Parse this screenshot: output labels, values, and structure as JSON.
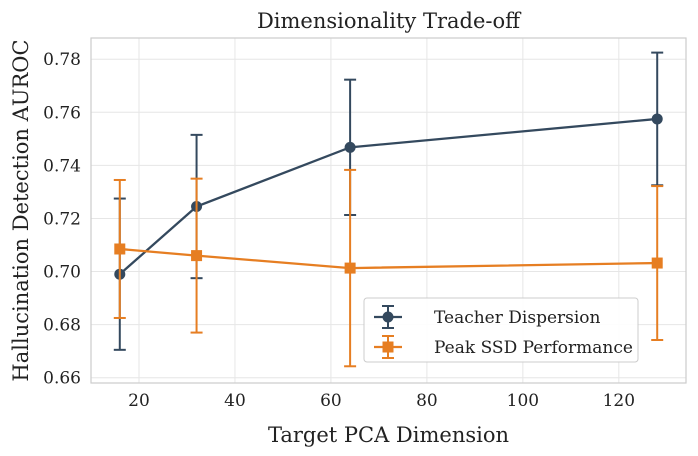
{
  "chart_data": {
    "type": "line",
    "title": "Dimensionality Trade-off",
    "xlabel": "Target PCA Dimension",
    "ylabel": "Hallucination Detection AUROC",
    "x": [
      16,
      32,
      64,
      128
    ],
    "xlim": [
      10,
      134
    ],
    "ylim": [
      0.658,
      0.788
    ],
    "xticks": [
      20,
      40,
      60,
      80,
      100,
      120
    ],
    "yticks": [
      0.66,
      0.68,
      0.7,
      0.72,
      0.74,
      0.76,
      0.78
    ],
    "grid": true,
    "legend_position": "bottom-right",
    "series": [
      {
        "name": "Teacher Dispersion",
        "color": "#34495e",
        "marker": "circle",
        "values": [
          0.699,
          0.7245,
          0.7468,
          0.7575
        ],
        "errors": [
          0.0285,
          0.027,
          0.0255,
          0.025
        ]
      },
      {
        "name": "Peak SSD Performance",
        "color": "#e67e22",
        "marker": "square",
        "values": [
          0.7085,
          0.706,
          0.7013,
          0.7032
        ],
        "errors": [
          0.026,
          0.029,
          0.037,
          0.029
        ]
      }
    ]
  }
}
